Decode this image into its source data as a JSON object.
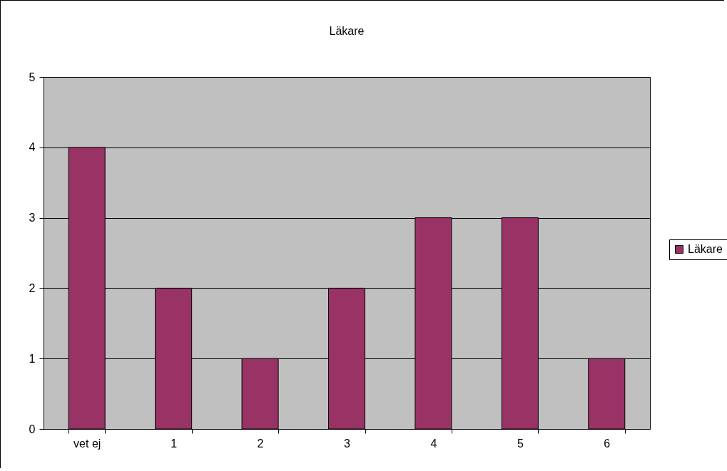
{
  "chart_data": {
    "type": "bar",
    "title": "Läkare",
    "categories": [
      "vet ej",
      "1",
      "2",
      "3",
      "4",
      "5",
      "6"
    ],
    "series": [
      {
        "name": "Läkare",
        "color": "#993366",
        "values": [
          4,
          2,
          1,
          2,
          3,
          3,
          1
        ]
      }
    ],
    "ylim": [
      0,
      5
    ],
    "yticks": [
      0,
      1,
      2,
      3,
      4,
      5
    ],
    "grid": "y",
    "legend": "right"
  }
}
